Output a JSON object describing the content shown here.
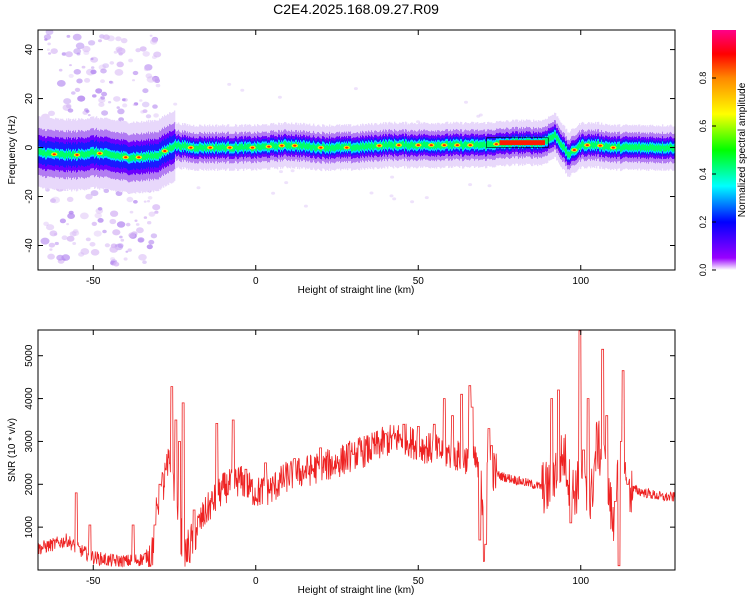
{
  "title": "C2E4.2025.168.09.27.R09",
  "chart_data": [
    {
      "type": "heatmap",
      "xlabel": "Height of straight line (km)",
      "ylabel": "Frequency (Hz)",
      "xlim": [
        -67,
        129
      ],
      "ylim": [
        -50,
        48
      ],
      "xticks": [
        -50,
        0,
        50,
        100
      ],
      "yticks": [
        -40,
        -20,
        0,
        20,
        40
      ],
      "colorbar": {
        "label": "Normalized spectral amplitude",
        "range": [
          0,
          1
        ],
        "ticks": [
          "0.0",
          "0.2",
          "0.4",
          "0.6",
          "0.8"
        ],
        "colormap": [
          "#ffffff",
          "#8800ff",
          "#0000ff",
          "#00ffff",
          "#00ff00",
          "#ffff00",
          "#ff0000",
          "#ff00aa"
        ]
      },
      "ridge": {
        "x": [
          -67,
          -60,
          -55,
          -50,
          -45,
          -40,
          -35,
          -30,
          -25,
          -20,
          -10,
          0,
          10,
          20,
          30,
          40,
          50,
          60,
          70,
          80,
          88,
          92,
          96,
          100,
          105,
          110,
          115,
          120,
          129
        ],
        "y": [
          -2,
          -3,
          -3,
          -2,
          -3,
          -4,
          -4,
          -3,
          1,
          0,
          0,
          0,
          1,
          0,
          0,
          1,
          1,
          1,
          1,
          2,
          2,
          5,
          -3,
          1,
          1,
          0,
          0,
          0,
          0
        ]
      }
    },
    {
      "type": "line",
      "xlabel": "Height of straight line (km)",
      "ylabel": "SNR (10 * v/v)",
      "xlim": [
        -67,
        129
      ],
      "ylim": [
        0,
        5600
      ],
      "xticks": [
        -50,
        0,
        50,
        100
      ],
      "yticks": [
        1000,
        2000,
        3000,
        4000,
        5000
      ],
      "grid": false,
      "series": [
        {
          "color": "#ee2222",
          "x": [
            -67,
            -62,
            -58,
            -55,
            -50,
            -45,
            -40,
            -35,
            -32,
            -30,
            -28,
            -26,
            -24,
            -22,
            -20,
            -18,
            -15,
            -10,
            -5,
            0,
            5,
            10,
            15,
            20,
            25,
            30,
            35,
            40,
            45,
            50,
            55,
            60,
            65,
            68,
            70,
            72,
            75,
            80,
            85,
            90,
            92,
            95,
            97,
            100,
            103,
            105,
            108,
            110,
            112,
            115,
            120,
            125,
            129
          ],
          "y": [
            500,
            600,
            700,
            500,
            300,
            220,
            200,
            250,
            400,
            1600,
            2100,
            2600,
            1300,
            300,
            600,
            1000,
            1400,
            1900,
            2100,
            1800,
            1900,
            2200,
            2300,
            2400,
            2500,
            2700,
            2800,
            3000,
            3100,
            2900,
            2800,
            2700,
            2600,
            2500,
            1600,
            2400,
            2200,
            2100,
            2000,
            1900,
            2300,
            2700,
            1800,
            2000,
            1500,
            3000,
            2200,
            1000,
            2500,
            1900,
            1800,
            1700,
            1700
          ],
          "peaks": [
            [
              -55.2,
              1800
            ],
            [
              -51,
              1050
            ],
            [
              -37.8,
              1050
            ],
            [
              -31,
              1050
            ],
            [
              -29.5,
              2000
            ],
            [
              -25.8,
              4280
            ],
            [
              -24.6,
              3500
            ],
            [
              -23.4,
              3000
            ],
            [
              -22.3,
              3900
            ],
            [
              -19,
              1400
            ],
            [
              -12,
              3420
            ],
            [
              -7,
              3500
            ],
            [
              -3,
              2350
            ],
            [
              3,
              2500
            ],
            [
              12,
              2600
            ],
            [
              20,
              2850
            ],
            [
              30,
              2700
            ],
            [
              40,
              3180
            ],
            [
              45.5,
              3400
            ],
            [
              50,
              3350
            ],
            [
              55,
              3400
            ],
            [
              58,
              4000
            ],
            [
              60.5,
              3600
            ],
            [
              63.3,
              4100
            ],
            [
              65.8,
              4300
            ],
            [
              66.5,
              3800
            ],
            [
              69,
              700
            ],
            [
              70.3,
              200
            ],
            [
              70.8,
              600
            ],
            [
              71.8,
              3300
            ],
            [
              72.6,
              2900
            ],
            [
              91,
              4000
            ],
            [
              93.2,
              4200
            ],
            [
              97,
              1100
            ],
            [
              99.8,
              5580
            ],
            [
              100.8,
              2800
            ],
            [
              102.2,
              4000
            ],
            [
              106.7,
              5150
            ],
            [
              108,
              3600
            ],
            [
              110.7,
              1600
            ],
            [
              111.8,
              100
            ],
            [
              112.5,
              3000
            ],
            [
              113,
              4650
            ],
            [
              114.5,
              2000
            ]
          ]
        }
      ]
    }
  ]
}
